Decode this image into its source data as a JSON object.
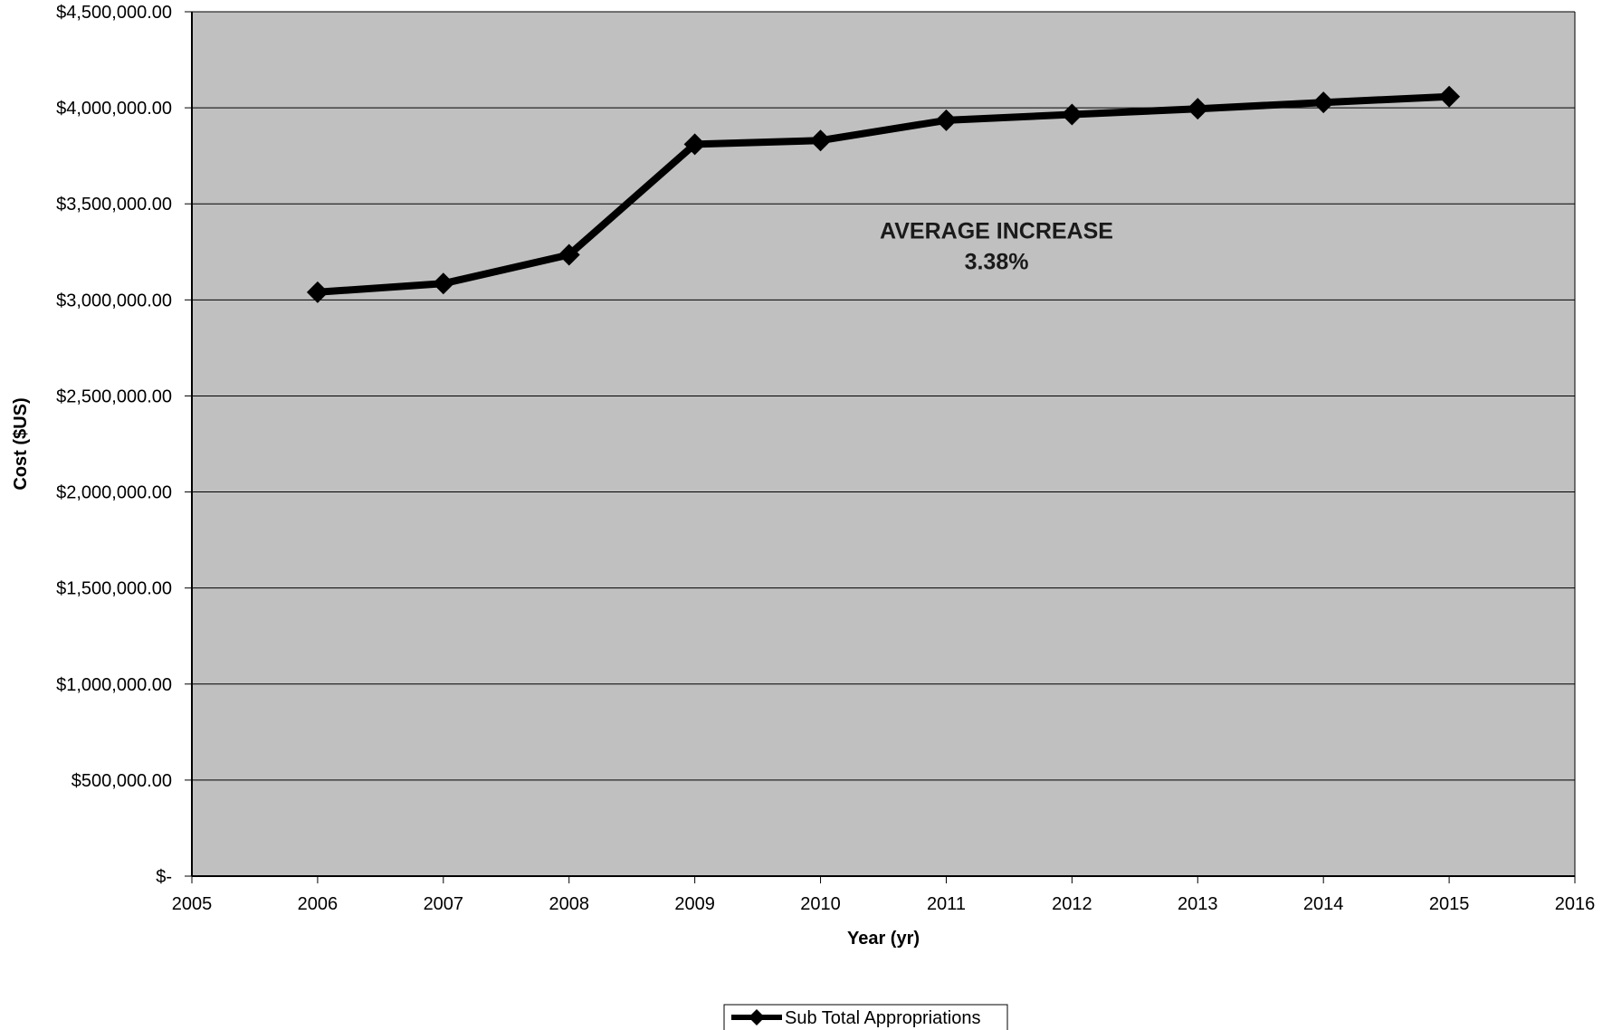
{
  "chart_data": {
    "type": "line",
    "title": "",
    "xlabel": "Year (yr)",
    "ylabel": "Cost ($US)",
    "x": [
      2006,
      2007,
      2008,
      2009,
      2010,
      2011,
      2012,
      2013,
      2014,
      2015
    ],
    "series": [
      {
        "name": "Sub Total Appropriations",
        "values": [
          3040000,
          3085000,
          3235000,
          3810000,
          3830000,
          3935000,
          3965000,
          3995000,
          4028000,
          4058000
        ],
        "color": "#000000",
        "marker": "diamond"
      }
    ],
    "xlim": [
      2005,
      2016
    ],
    "ylim": [
      0,
      4500000
    ],
    "x_ticks": [
      2005,
      2006,
      2007,
      2008,
      2009,
      2010,
      2011,
      2012,
      2013,
      2014,
      2015,
      2016
    ],
    "x_tick_labels": [
      "2005",
      "2006",
      "2007",
      "2008",
      "2009",
      "2010",
      "2011",
      "2012",
      "2013",
      "2014",
      "2015",
      "2016"
    ],
    "y_ticks": [
      0,
      500000,
      1000000,
      1500000,
      2000000,
      2500000,
      3000000,
      3500000,
      4000000,
      4500000
    ],
    "y_tick_labels": [
      "$-",
      "$500,000.00",
      "$1,000,000.00",
      "$1,500,000.00",
      "$2,000,000.00",
      "$2,500,000.00",
      "$3,000,000.00",
      "$3,500,000.00",
      "$4,000,000.00",
      "$4,500,000.00"
    ],
    "grid": "horizontal",
    "plot_background": "#c0c0c0",
    "legend_position": "bottom-center",
    "annotations": [
      {
        "text": "AVERAGE INCREASE",
        "x": 2011.4,
        "y": 3320000
      },
      {
        "text": "3.38%",
        "x": 2011.4,
        "y": 3160000
      }
    ]
  }
}
